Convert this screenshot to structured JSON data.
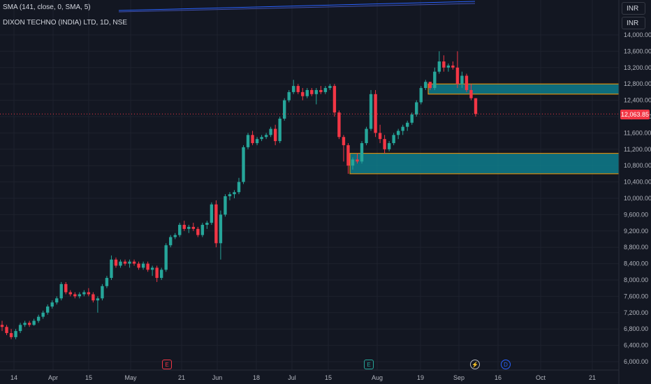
{
  "indicator": {
    "label": "SMA (141, close, 0, SMA, 5)"
  },
  "symbol": {
    "label": "DIXON TECHNO (INDIA) LTD, 1D, NSE"
  },
  "currency": {
    "top": "INR",
    "second": "INR"
  },
  "last_price": "12,063.85",
  "colors": {
    "up": "#26a69a",
    "down": "#f23645",
    "zone": "#0e7d8c",
    "zone_border": "#ff9800",
    "sma": "#2962ff"
  },
  "events": [
    {
      "name": "earnings-icon",
      "label": "E",
      "color": "#f23645"
    },
    {
      "name": "earnings-icon",
      "label": "E",
      "color": "#26a69a"
    },
    {
      "name": "split-icon",
      "label": "⚡",
      "color": "#b2b5be"
    },
    {
      "name": "dividend-icon",
      "label": "D",
      "color": "#2962ff"
    }
  ],
  "chart_data": {
    "type": "candlestick",
    "y_ticks": [
      "14,000.00",
      "13,600.00",
      "13,200.00",
      "12,800.00",
      "12,400.00",
      "12,000.00",
      "11,600.00",
      "11,200.00",
      "10,800.00",
      "10,400.00",
      "10,000.00",
      "9,600.00",
      "9,200.00",
      "8,800.00",
      "8,400.00",
      "8,000.00",
      "7,600.00",
      "7,200.00",
      "6,800.00",
      "6,400.00",
      "6,000.00"
    ],
    "x_ticks": [
      "14",
      "Apr",
      "15",
      "May",
      "21",
      "Jun",
      "18",
      "Jul",
      "15",
      "Aug",
      "19",
      "Sep",
      "16",
      "Oct",
      "21"
    ],
    "demand_zones": [
      {
        "from": 12550,
        "to": 12800
      },
      {
        "from": 10600,
        "to": 11100
      }
    ],
    "candles": [
      [
        6900,
        7000,
        6750,
        6850
      ],
      [
        6850,
        6900,
        6650,
        6700
      ],
      [
        6700,
        6800,
        6550,
        6600
      ],
      [
        6600,
        6800,
        6550,
        6750
      ],
      [
        6750,
        6950,
        6700,
        6900
      ],
      [
        6900,
        7000,
        6850,
        6950
      ],
      [
        6950,
        7000,
        6850,
        6900
      ],
      [
        6900,
        7050,
        6880,
        7000
      ],
      [
        7000,
        7150,
        6950,
        7100
      ],
      [
        7100,
        7250,
        7050,
        7200
      ],
      [
        7200,
        7400,
        7150,
        7350
      ],
      [
        7350,
        7500,
        7300,
        7450
      ],
      [
        7450,
        7600,
        7400,
        7550
      ],
      [
        7550,
        7950,
        7500,
        7900
      ],
      [
        7900,
        7950,
        7650,
        7700
      ],
      [
        7700,
        7750,
        7600,
        7650
      ],
      [
        7650,
        7700,
        7550,
        7600
      ],
      [
        7600,
        7700,
        7550,
        7650
      ],
      [
        7650,
        7750,
        7600,
        7700
      ],
      [
        7700,
        7800,
        7600,
        7650
      ],
      [
        7650,
        7700,
        7450,
        7500
      ],
      [
        7500,
        7600,
        7200,
        7550
      ],
      [
        7550,
        7900,
        7500,
        7850
      ],
      [
        7850,
        8100,
        7800,
        8050
      ],
      [
        8050,
        8600,
        8000,
        8500
      ],
      [
        8500,
        8550,
        8300,
        8350
      ],
      [
        8350,
        8500,
        8300,
        8450
      ],
      [
        8450,
        8500,
        8350,
        8400
      ],
      [
        8400,
        8500,
        8300,
        8450
      ],
      [
        8450,
        8500,
        8350,
        8400
      ],
      [
        8400,
        8450,
        8250,
        8300
      ],
      [
        8300,
        8450,
        8250,
        8400
      ],
      [
        8400,
        8450,
        8200,
        8250
      ],
      [
        8250,
        8350,
        8100,
        8300
      ],
      [
        8300,
        8350,
        7950,
        8050
      ],
      [
        8050,
        8300,
        8000,
        8250
      ],
      [
        8250,
        8900,
        8200,
        8850
      ],
      [
        8850,
        9100,
        8800,
        9050
      ],
      [
        9050,
        9150,
        9000,
        9100
      ],
      [
        9100,
        9400,
        9050,
        9350
      ],
      [
        9350,
        9450,
        9200,
        9250
      ],
      [
        9250,
        9350,
        9150,
        9300
      ],
      [
        9300,
        9400,
        9200,
        9250
      ],
      [
        9250,
        9300,
        9050,
        9100
      ],
      [
        9100,
        9400,
        9050,
        9350
      ],
      [
        9350,
        9450,
        9250,
        9400
      ],
      [
        9400,
        9900,
        9350,
        9850
      ],
      [
        9850,
        9950,
        8800,
        8900
      ],
      [
        8900,
        9700,
        8500,
        9600
      ],
      [
        9600,
        10100,
        9550,
        10050
      ],
      [
        10050,
        10150,
        9950,
        10100
      ],
      [
        10100,
        10200,
        10000,
        10150
      ],
      [
        10150,
        10500,
        10100,
        10400
      ],
      [
        10400,
        11300,
        10350,
        11250
      ],
      [
        11250,
        11600,
        11200,
        11550
      ],
      [
        11550,
        11650,
        11300,
        11350
      ],
      [
        11350,
        11500,
        11300,
        11450
      ],
      [
        11450,
        11550,
        11400,
        11500
      ],
      [
        11500,
        11600,
        11450,
        11550
      ],
      [
        11550,
        11750,
        11500,
        11700
      ],
      [
        11700,
        11800,
        11300,
        11400
      ],
      [
        11400,
        12000,
        11350,
        11950
      ],
      [
        11950,
        12450,
        11900,
        12400
      ],
      [
        12400,
        12650,
        12350,
        12600
      ],
      [
        12600,
        12900,
        12550,
        12750
      ],
      [
        12750,
        12800,
        12550,
        12600
      ],
      [
        12600,
        12700,
        12400,
        12500
      ],
      [
        12500,
        12700,
        12450,
        12650
      ],
      [
        12650,
        12700,
        12500,
        12550
      ],
      [
        12550,
        12700,
        12300,
        12650
      ],
      [
        12650,
        12750,
        12550,
        12600
      ],
      [
        12600,
        12750,
        12550,
        12700
      ],
      [
        12700,
        12800,
        12650,
        12750
      ],
      [
        12750,
        12800,
        12000,
        12100
      ],
      [
        12100,
        12150,
        11450,
        11500
      ],
      [
        11500,
        11550,
        10900,
        11300
      ],
      [
        11300,
        11350,
        10600,
        10800
      ],
      [
        10800,
        11000,
        10700,
        10950
      ],
      [
        10950,
        11100,
        10850,
        10900
      ],
      [
        10900,
        11400,
        10850,
        11350
      ],
      [
        11350,
        11750,
        11300,
        11700
      ],
      [
        11700,
        12650,
        11650,
        12550
      ],
      [
        12550,
        12650,
        11500,
        11600
      ],
      [
        11600,
        11800,
        11350,
        11450
      ],
      [
        11450,
        11550,
        11100,
        11200
      ],
      [
        11200,
        11400,
        11150,
        11350
      ],
      [
        11350,
        11600,
        11300,
        11550
      ],
      [
        11550,
        11700,
        11450,
        11650
      ],
      [
        11650,
        11800,
        11550,
        11750
      ],
      [
        11750,
        11900,
        11650,
        11850
      ],
      [
        11850,
        12100,
        11800,
        12050
      ],
      [
        12050,
        12400,
        12000,
        12350
      ],
      [
        12350,
        12750,
        12300,
        12700
      ],
      [
        12700,
        12900,
        12650,
        12850
      ],
      [
        12850,
        12850,
        12650,
        12700
      ],
      [
        12700,
        13200,
        12650,
        13100
      ],
      [
        13100,
        13600,
        13050,
        13350
      ],
      [
        13350,
        13500,
        13100,
        13200
      ],
      [
        13200,
        13300,
        13100,
        13250
      ],
      [
        13250,
        13350,
        13150,
        13200
      ],
      [
        13200,
        13600,
        12700,
        12800
      ],
      [
        12800,
        13100,
        12700,
        13000
      ],
      [
        13000,
        13050,
        12600,
        12650
      ],
      [
        12650,
        12800,
        12400,
        12450
      ],
      [
        12450,
        12450,
        12000,
        12063.85
      ]
    ]
  }
}
